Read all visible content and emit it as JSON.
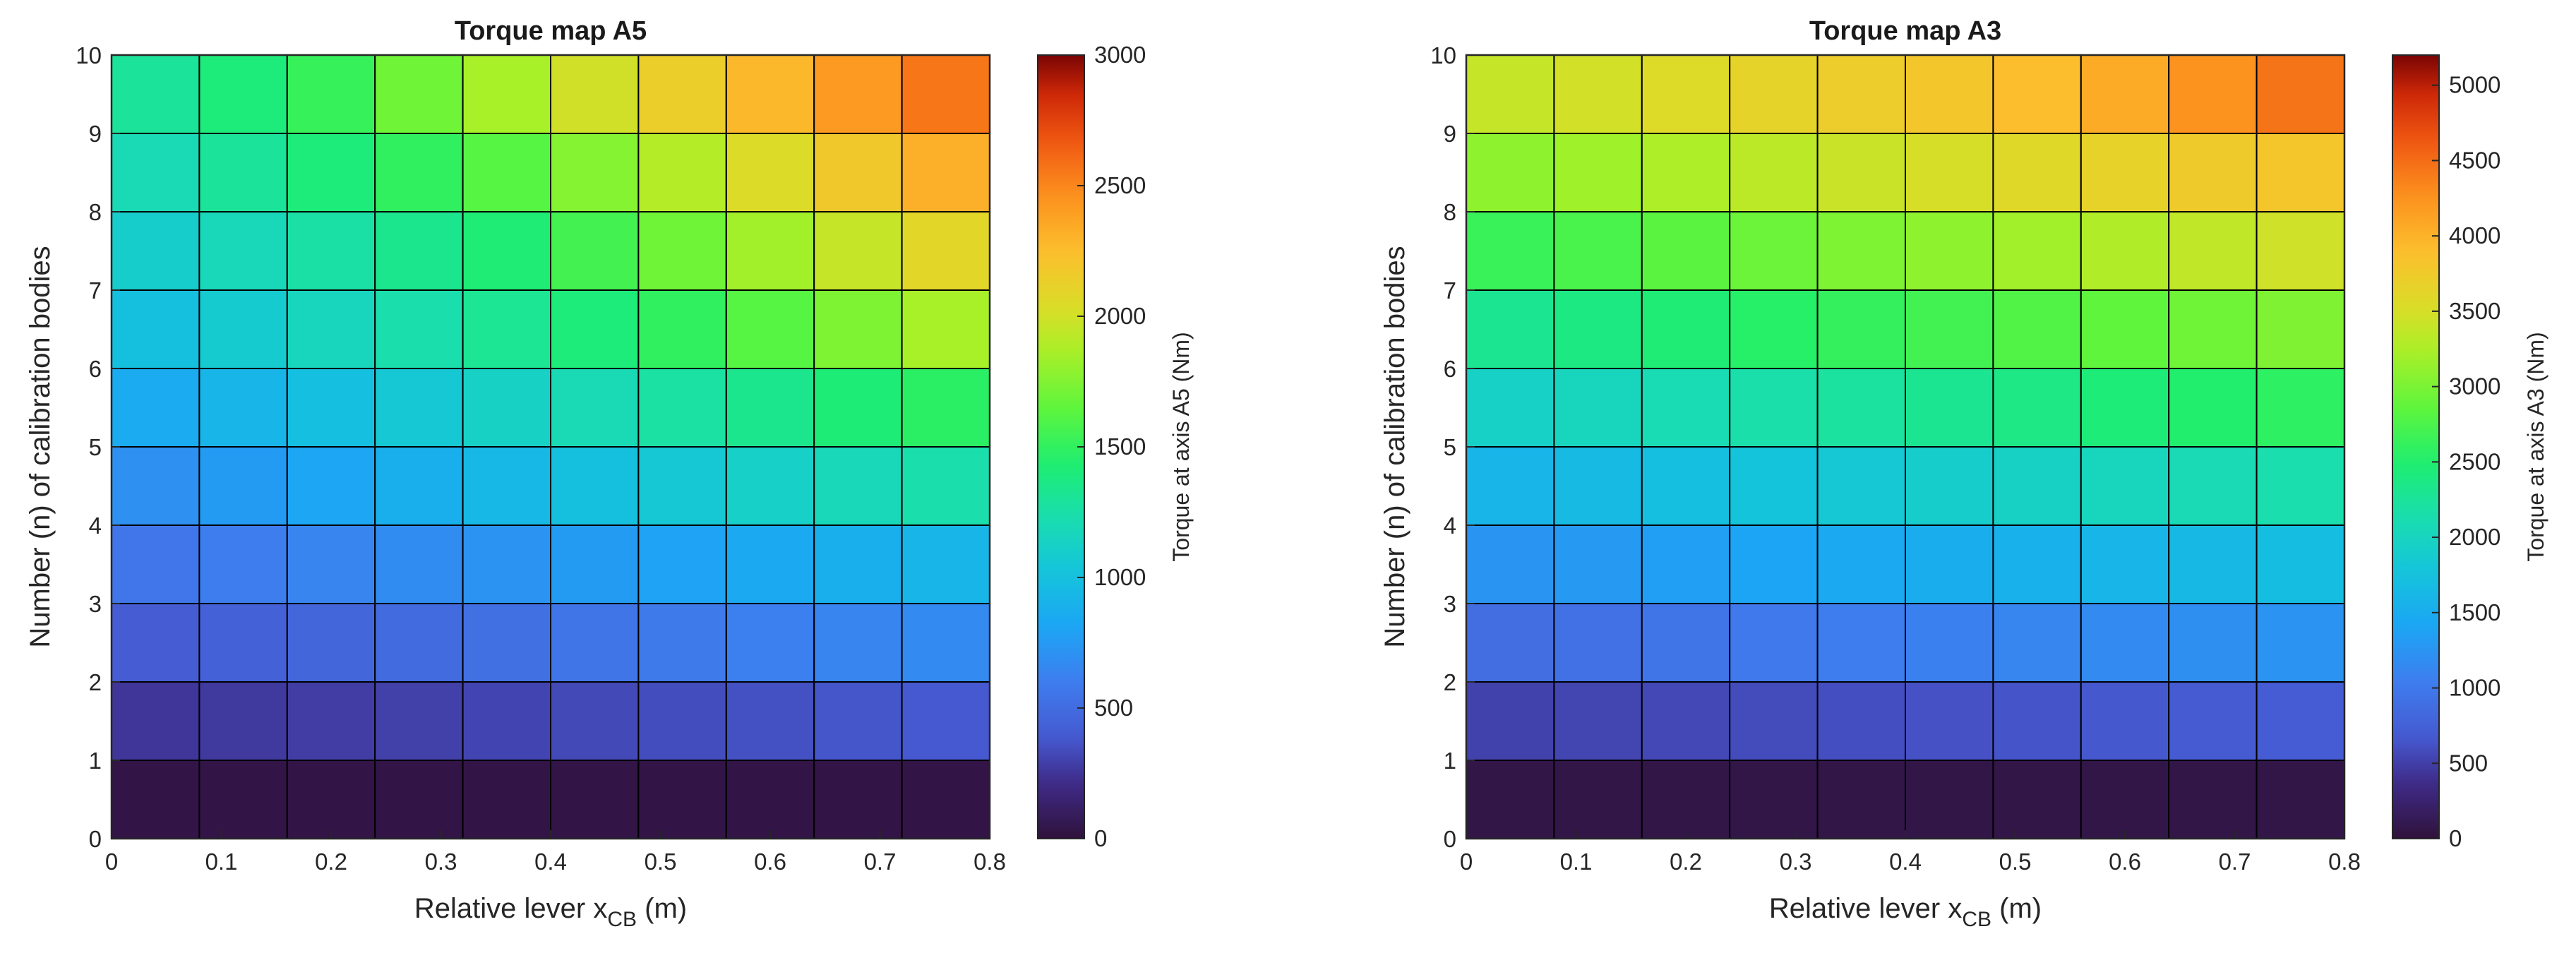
{
  "chart_data": [
    {
      "type": "heatmap",
      "title": "Torque map A5",
      "xlabel": "Relative lever x",
      "xlabel_sub": "CB",
      "xlabel_unit": " (m)",
      "ylabel": "Number (n) of calibration bodies",
      "colorbar_label": "Torque at axis A5 (Nm)",
      "x_edges": [
        0,
        0.08,
        0.16,
        0.24,
        0.32,
        0.4,
        0.48,
        0.56,
        0.64,
        0.72,
        0.8
      ],
      "y_edges": [
        0,
        1,
        2,
        3,
        4,
        5,
        6,
        7,
        8,
        9,
        10
      ],
      "xlim": [
        0,
        0.8
      ],
      "ylim": [
        0,
        10
      ],
      "x_ticks": [
        "0",
        "0.1",
        "0.2",
        "0.3",
        "0.4",
        "0.5",
        "0.6",
        "0.7",
        "0.8"
      ],
      "y_ticks": [
        "0",
        "1",
        "2",
        "3",
        "4",
        "5",
        "6",
        "7",
        "8",
        "9",
        "10"
      ],
      "clim": [
        0,
        3000
      ],
      "colorbar_ticks": [
        "0",
        "500",
        "1000",
        "1500",
        "2000",
        "2500",
        "3000"
      ],
      "values": [
        [
          30,
          30,
          30,
          30,
          30,
          30,
          30,
          30,
          30,
          30
        ],
        [
          250,
          265,
          280,
          295,
          310,
          325,
          340,
          355,
          370,
          385
        ],
        [
          400,
          430,
          460,
          490,
          520,
          550,
          580,
          610,
          640,
          670
        ],
        [
          560,
          600,
          640,
          680,
          720,
          760,
          800,
          840,
          880,
          920
        ],
        [
          700,
          760,
          820,
          880,
          940,
          1000,
          1060,
          1120,
          1180,
          1240
        ],
        [
          850,
          920,
          990,
          1060,
          1130,
          1200,
          1270,
          1340,
          1410,
          1480
        ],
        [
          1000,
          1080,
          1160,
          1240,
          1320,
          1400,
          1500,
          1620,
          1740,
          1860
        ],
        [
          1100,
          1180,
          1260,
          1340,
          1420,
          1560,
          1700,
          1840,
          1960,
          2080
        ],
        [
          1200,
          1300,
          1400,
          1500,
          1620,
          1760,
          1900,
          2040,
          2180,
          2320
        ],
        [
          1300,
          1400,
          1520,
          1700,
          1860,
          2000,
          2140,
          2280,
          2420,
          2560
        ]
      ],
      "grid": true
    },
    {
      "type": "heatmap",
      "title": "Torque map A3",
      "xlabel": "Relative lever x",
      "xlabel_sub": "CB",
      "xlabel_unit": " (m)",
      "ylabel": "Number (n) of calibration bodies",
      "colorbar_label": "Torque at axis A3 (Nm)",
      "x_edges": [
        0,
        0.08,
        0.16,
        0.24,
        0.32,
        0.4,
        0.48,
        0.56,
        0.64,
        0.72,
        0.8
      ],
      "y_edges": [
        0,
        1,
        2,
        3,
        4,
        5,
        6,
        7,
        8,
        9,
        10
      ],
      "xlim": [
        0,
        0.8
      ],
      "ylim": [
        0,
        10
      ],
      "x_ticks": [
        "0",
        "0.1",
        "0.2",
        "0.3",
        "0.4",
        "0.5",
        "0.6",
        "0.7",
        "0.8"
      ],
      "y_ticks": [
        "0",
        "1",
        "2",
        "3",
        "4",
        "5",
        "6",
        "7",
        "8",
        "9",
        "10"
      ],
      "clim": [
        0,
        5200
      ],
      "colorbar_ticks": [
        "0",
        "500",
        "1000",
        "1500",
        "2000",
        "2500",
        "3000",
        "3500",
        "4000",
        "4500",
        "5000"
      ],
      "values": [
        [
          60,
          60,
          60,
          60,
          60,
          60,
          60,
          60,
          60,
          60
        ],
        [
          520,
          540,
          560,
          580,
          600,
          620,
          640,
          660,
          680,
          700
        ],
        [
          880,
          920,
          960,
          1000,
          1040,
          1080,
          1120,
          1160,
          1200,
          1240
        ],
        [
          1250,
          1300,
          1350,
          1400,
          1450,
          1500,
          1550,
          1600,
          1650,
          1700
        ],
        [
          1600,
          1660,
          1720,
          1780,
          1840,
          1900,
          1960,
          2020,
          2080,
          2140
        ],
        [
          1950,
          2020,
          2090,
          2160,
          2230,
          2300,
          2370,
          2440,
          2510,
          2580
        ],
        [
          2300,
          2380,
          2460,
          2540,
          2620,
          2700,
          2780,
          2860,
          2940,
          3020
        ],
        [
          2650,
          2740,
          2830,
          2920,
          3010,
          3100,
          3190,
          3280,
          3370,
          3460
        ],
        [
          3100,
          3180,
          3260,
          3340,
          3420,
          3500,
          3580,
          3660,
          3740,
          3820
        ],
        [
          3400,
          3480,
          3560,
          3640,
          3720,
          3800,
          3900,
          4050,
          4250,
          4450
        ]
      ],
      "grid": true
    }
  ]
}
